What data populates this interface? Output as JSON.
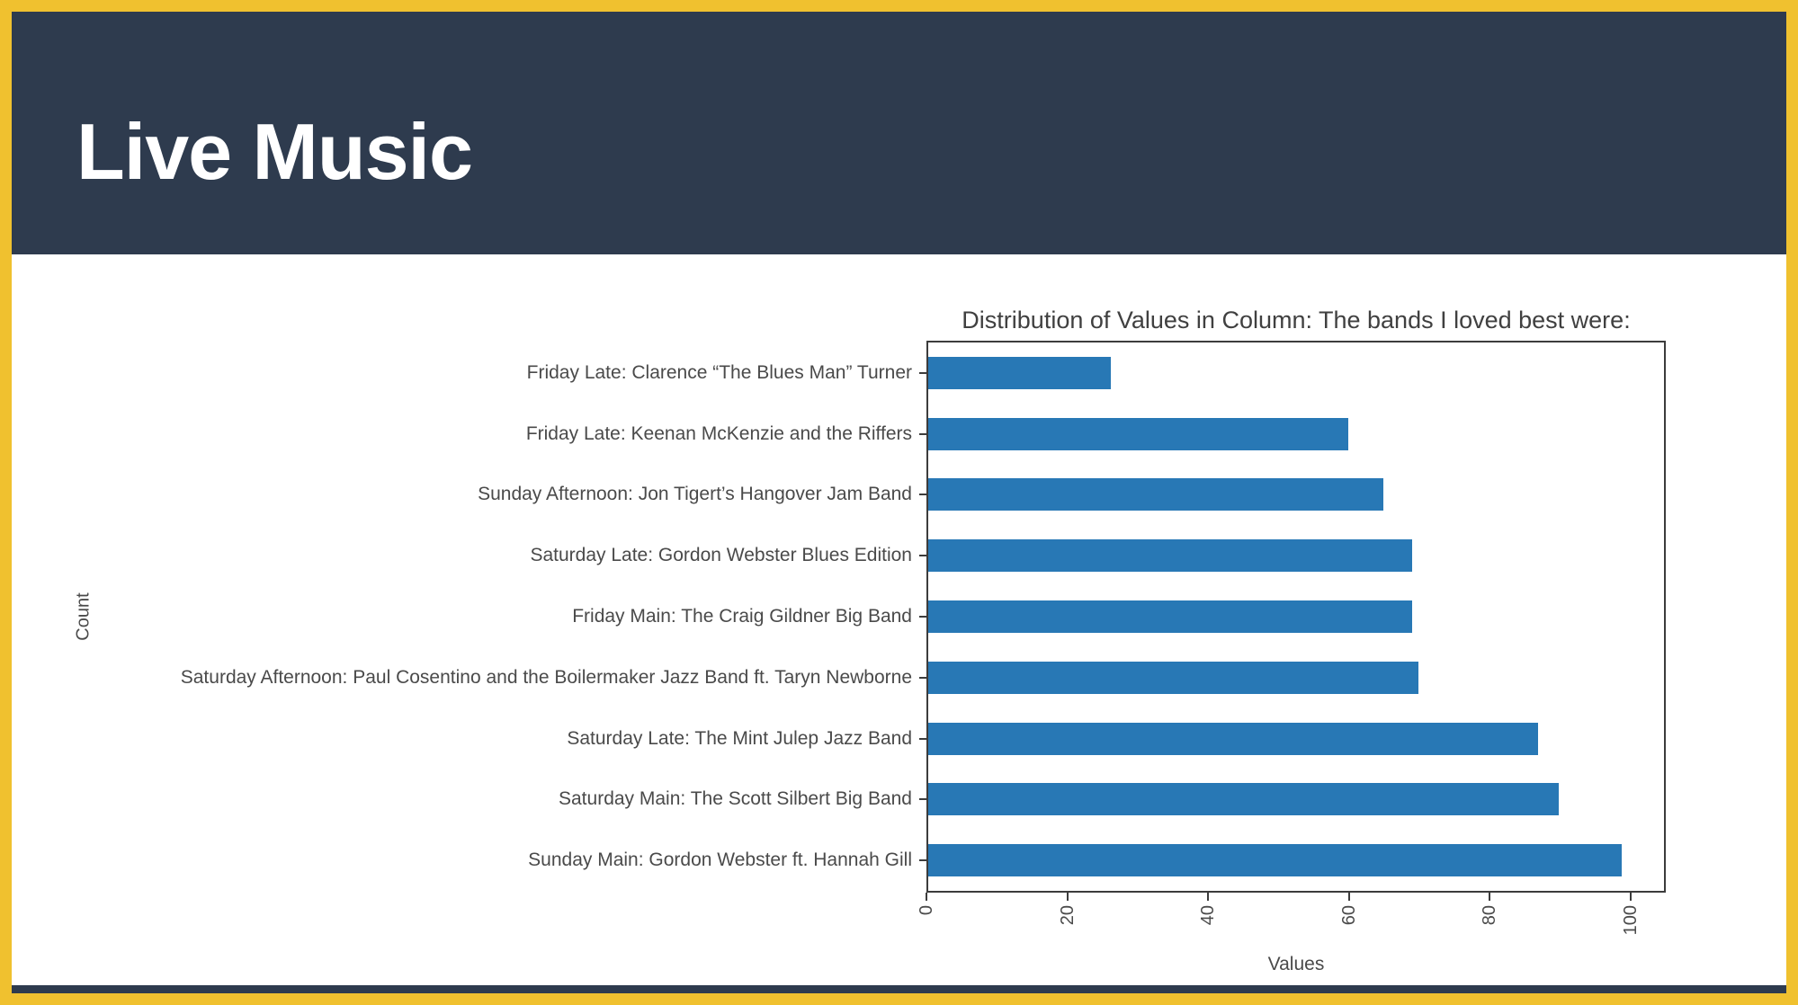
{
  "page": {
    "title": "Live Music"
  },
  "theme": {
    "border_color": "#f0c12f",
    "header_bg": "#2e3b4e",
    "bar_color": "#2878b5",
    "spine_color": "#3c3c3c",
    "text_color": "#4a4a4a",
    "title_color": "#404040"
  },
  "chart_data": {
    "type": "bar",
    "orientation": "horizontal",
    "title": "Distribution of Values in Column: The bands I loved best were:",
    "xlabel": "Values",
    "ylabel": "Count",
    "xlim": [
      0,
      105
    ],
    "xticks": [
      0,
      20,
      40,
      60,
      80,
      100
    ],
    "grid": false,
    "legend": false,
    "categories": [
      "Friday Late: Clarence “The Blues Man” Turner",
      "Friday Late: Keenan McKenzie and the Riffers",
      "Sunday Afternoon: Jon Tigert’s Hangover Jam Band",
      "Saturday Late: Gordon Webster Blues Edition",
      "Friday Main: The Craig Gildner Big Band",
      "Saturday Afternoon: Paul Cosentino and the Boilermaker Jazz Band ft. Taryn Newborne",
      "Saturday Late: The Mint Julep Jazz Band",
      "Saturday Main: The Scott Silbert Big Band",
      "Sunday Main: Gordon Webster ft. Hannah Gill"
    ],
    "values": [
      26,
      60,
      65,
      69,
      69,
      70,
      87,
      90,
      99
    ]
  }
}
